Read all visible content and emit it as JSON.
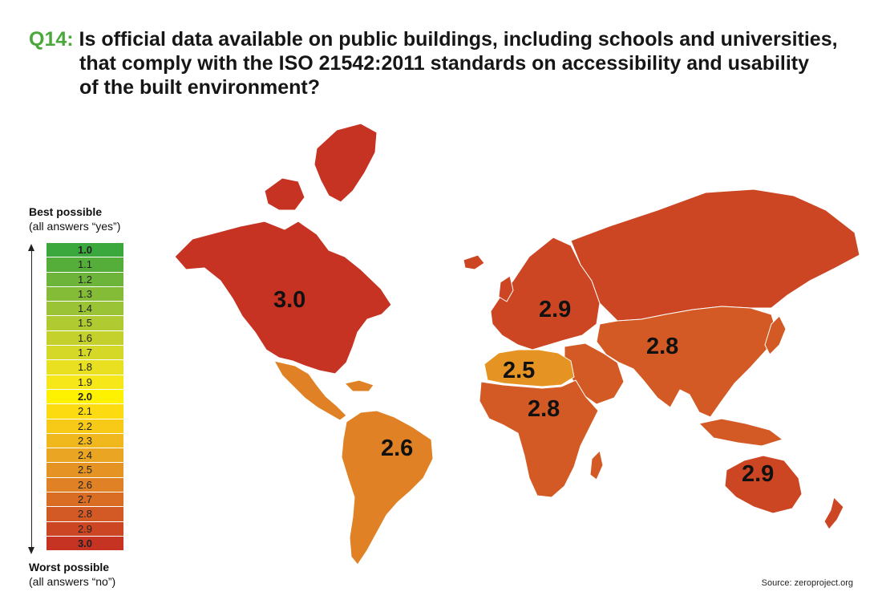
{
  "title": {
    "question_number": "Q14:",
    "line1": "Is official data available on public buildings, including schools and universities,",
    "line2": "that comply with the ISO 21542:2011 standards on accessibility and usability",
    "line3": "of the built environment?"
  },
  "legend": {
    "best_label": "Best possible",
    "best_note": "(all answers “yes”)",
    "worst_label": "Worst possible",
    "worst_note": "(all answers “no”)",
    "scale": [
      {
        "value": "1.0",
        "color": "#3aa83c"
      },
      {
        "value": "1.1",
        "color": "#55ae3a"
      },
      {
        "value": "1.2",
        "color": "#6db53a"
      },
      {
        "value": "1.3",
        "color": "#84bc38"
      },
      {
        "value": "1.4",
        "color": "#9bc336"
      },
      {
        "value": "1.5",
        "color": "#b0ca32"
      },
      {
        "value": "1.6",
        "color": "#c4d12d"
      },
      {
        "value": "1.7",
        "color": "#d6d828"
      },
      {
        "value": "1.8",
        "color": "#e8e020"
      },
      {
        "value": "1.9",
        "color": "#f6e818"
      },
      {
        "value": "2.0",
        "color": "#fff200"
      },
      {
        "value": "2.1",
        "color": "#fcdc10"
      },
      {
        "value": "2.2",
        "color": "#f7ca18"
      },
      {
        "value": "2.3",
        "color": "#f1b81e"
      },
      {
        "value": "2.4",
        "color": "#eaa522"
      },
      {
        "value": "2.5",
        "color": "#e59423"
      },
      {
        "value": "2.6",
        "color": "#df8124"
      },
      {
        "value": "2.7",
        "color": "#d96d24"
      },
      {
        "value": "2.8",
        "color": "#d35a24"
      },
      {
        "value": "2.9",
        "color": "#cc4623"
      },
      {
        "value": "3.0",
        "color": "#c63322"
      }
    ]
  },
  "regions": {
    "north_america": {
      "value": "3.0",
      "color": "#c63322"
    },
    "latin_america": {
      "value": "2.6",
      "color": "#df8124"
    },
    "europe": {
      "value": "2.9",
      "color": "#cc4623"
    },
    "north_africa": {
      "value": "2.5",
      "color": "#e59423"
    },
    "sub_saharan_africa": {
      "value": "2.8",
      "color": "#d35a24"
    },
    "asia": {
      "value": "2.8",
      "color": "#d35a24"
    },
    "oceania": {
      "value": "2.9",
      "color": "#cc4623"
    }
  },
  "source": "Source: zeroproject.org"
}
